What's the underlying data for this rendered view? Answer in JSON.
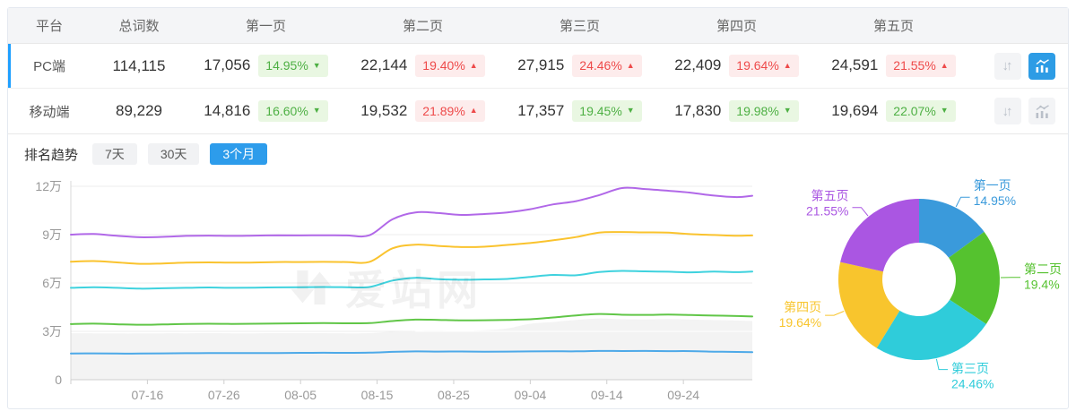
{
  "table": {
    "columns": [
      "平台",
      "总词数",
      "第一页",
      "第二页",
      "第三页",
      "第四页",
      "第五页"
    ],
    "rows": [
      {
        "platform": "PC端",
        "total": "114,115",
        "active": true,
        "pages": [
          {
            "value": "17,056",
            "pct": "14.95%",
            "dir": "down"
          },
          {
            "value": "22,144",
            "pct": "19.40%",
            "dir": "up"
          },
          {
            "value": "27,915",
            "pct": "24.46%",
            "dir": "up"
          },
          {
            "value": "22,409",
            "pct": "19.64%",
            "dir": "up"
          },
          {
            "value": "24,591",
            "pct": "21.55%",
            "dir": "up"
          }
        ]
      },
      {
        "platform": "移动端",
        "total": "89,229",
        "active": false,
        "pages": [
          {
            "value": "14,816",
            "pct": "16.60%",
            "dir": "down"
          },
          {
            "value": "19,532",
            "pct": "21.89%",
            "dir": "up"
          },
          {
            "value": "17,357",
            "pct": "19.45%",
            "dir": "down"
          },
          {
            "value": "17,830",
            "pct": "19.98%",
            "dir": "down"
          },
          {
            "value": "19,694",
            "pct": "22.07%",
            "dir": "down"
          }
        ]
      }
    ]
  },
  "icons": {
    "sort_glyph": "↓↑"
  },
  "trend": {
    "label": "排名趋势",
    "tabs": [
      {
        "label": "7天",
        "active": false
      },
      {
        "label": "30天",
        "active": false
      },
      {
        "label": "3个月",
        "active": true
      }
    ]
  },
  "watermark": {
    "text": "爱站网"
  },
  "colors": {
    "accent_blue": "#1e9fff",
    "tab_active": "#2d9ceb",
    "badge_up_red": "#ee4a4a",
    "badge_down_green": "#4eb044"
  },
  "chart_data": [
    {
      "type": "line",
      "title": "排名趋势 (3个月)",
      "stacked_cumulative": true,
      "x_days": [
        0,
        3,
        6,
        9,
        12,
        15,
        18,
        21,
        24,
        27,
        30,
        33,
        36,
        39,
        42,
        45,
        48,
        51,
        54,
        57,
        60,
        63,
        66,
        69,
        72,
        75,
        78,
        81,
        84,
        87,
        89
      ],
      "x_tick_days": [
        10,
        20,
        30,
        40,
        50,
        60,
        70,
        80
      ],
      "x_tick_labels": [
        "07-16",
        "07-26",
        "08-05",
        "08-15",
        "08-25",
        "09-04",
        "09-14",
        "09-24"
      ],
      "y_ticks": [
        0,
        30000,
        60000,
        90000,
        120000
      ],
      "y_tick_labels": [
        "0",
        "3万",
        "6万",
        "9万",
        "12万"
      ],
      "ylim": [
        0,
        120000
      ],
      "grid": true,
      "series": [
        {
          "name": "第一页",
          "color": "#4da9e8",
          "values": [
            16200,
            16350,
            16250,
            16200,
            16350,
            16450,
            16500,
            16550,
            16500,
            16550,
            16650,
            16700,
            16650,
            16750,
            17250,
            17550,
            17450,
            17500,
            17400,
            17450,
            17550,
            17650,
            17600,
            17850,
            17800,
            17850,
            17750,
            17700,
            17400,
            17200,
            17056
          ]
        },
        {
          "name": "第二页",
          "color": "#61c648",
          "values": [
            34500,
            34800,
            34400,
            34100,
            34300,
            34600,
            34700,
            34600,
            34700,
            34900,
            35000,
            35100,
            35000,
            35100,
            36400,
            37300,
            37100,
            36800,
            36900,
            37100,
            37500,
            38600,
            39900,
            40800,
            40300,
            40200,
            40400,
            40100,
            39800,
            39500,
            39200
          ]
        },
        {
          "name": "第三页",
          "color": "#3fd2de",
          "values": [
            57000,
            57400,
            57000,
            56500,
            56700,
            57000,
            57200,
            57000,
            57100,
            57300,
            57400,
            57500,
            57400,
            57500,
            61500,
            63200,
            62400,
            62000,
            62200,
            62500,
            63800,
            65000,
            64800,
            66800,
            67500,
            67200,
            67000,
            66600,
            67100,
            66700,
            67115
          ]
        },
        {
          "name": "第四页",
          "color": "#fac32e",
          "values": [
            73200,
            73600,
            72800,
            71900,
            72100,
            72600,
            72800,
            72600,
            72700,
            73000,
            73000,
            73100,
            73000,
            73100,
            81500,
            83800,
            83000,
            82300,
            82500,
            83600,
            84800,
            86500,
            88500,
            91300,
            91600,
            91400,
            91200,
            90300,
            89800,
            89300,
            89524
          ]
        },
        {
          "name": "第五页",
          "color": "#b168e8",
          "values": [
            90000,
            90400,
            89300,
            88400,
            88600,
            89200,
            89400,
            89200,
            89400,
            89600,
            89500,
            89600,
            89500,
            89600,
            99500,
            103800,
            103400,
            102200,
            102800,
            103800,
            105800,
            108800,
            110800,
            114500,
            118900,
            118300,
            117200,
            116000,
            114200,
            113300,
            114115
          ]
        }
      ],
      "shadow_band": {
        "color": "#f3f3f3",
        "values": [
          28800,
          28800,
          28700,
          28700,
          28800,
          28800,
          28900,
          28800,
          28800,
          28900,
          28900,
          28900,
          28800,
          28900,
          29800,
          30300,
          30400,
          30200,
          30700,
          31800,
          34700,
          35800,
          37100,
          38000,
          37500,
          37400,
          37600,
          37300,
          37000,
          36700,
          36400
        ]
      }
    },
    {
      "type": "donut",
      "inner_radius_ratio": 0.45,
      "label_position": "outside",
      "slices": [
        {
          "label": "第一页",
          "value": 14.95,
          "pct_label": "14.95%",
          "color": "#3a9adb"
        },
        {
          "label": "第二页",
          "value": 19.4,
          "pct_label": "19.4%",
          "color": "#55c22f"
        },
        {
          "label": "第三页",
          "value": 24.46,
          "pct_label": "24.46%",
          "color": "#2fccda"
        },
        {
          "label": "第四页",
          "value": 19.64,
          "pct_label": "19.64%",
          "color": "#f8c52d"
        },
        {
          "label": "第五页",
          "value": 21.55,
          "pct_label": "21.55%",
          "color": "#aa56e2"
        }
      ]
    }
  ]
}
